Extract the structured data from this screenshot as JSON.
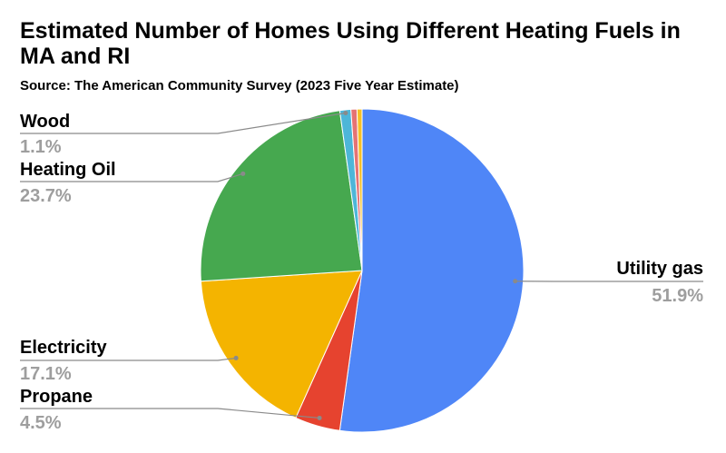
{
  "chart_data": {
    "type": "pie",
    "title": "Estimated Number of Homes Using Different Heating Fuels in MA and RI",
    "subtitle": "Source: The American Community Survey (2023 Five Year Estimate)",
    "slices": [
      {
        "label": "Utility gas",
        "percent_label": "51.9%",
        "value": 51.9,
        "color": "#4f86f7"
      },
      {
        "label": "Propane",
        "percent_label": "4.5%",
        "value": 4.5,
        "color": "#e6432f"
      },
      {
        "label": "Electricity",
        "percent_label": "17.1%",
        "value": 17.1,
        "color": "#f4b400"
      },
      {
        "label": "Heating Oil",
        "percent_label": "23.7%",
        "value": 23.7,
        "color": "#46a84f"
      },
      {
        "label": "Wood",
        "percent_label": "1.1%",
        "value": 1.1,
        "color": "#4db6d8"
      },
      {
        "label": "",
        "percent_label": "",
        "value": 0.6,
        "color": "#e57373"
      },
      {
        "label": "",
        "percent_label": "",
        "value": 0.5,
        "color": "#f6c026"
      }
    ]
  }
}
